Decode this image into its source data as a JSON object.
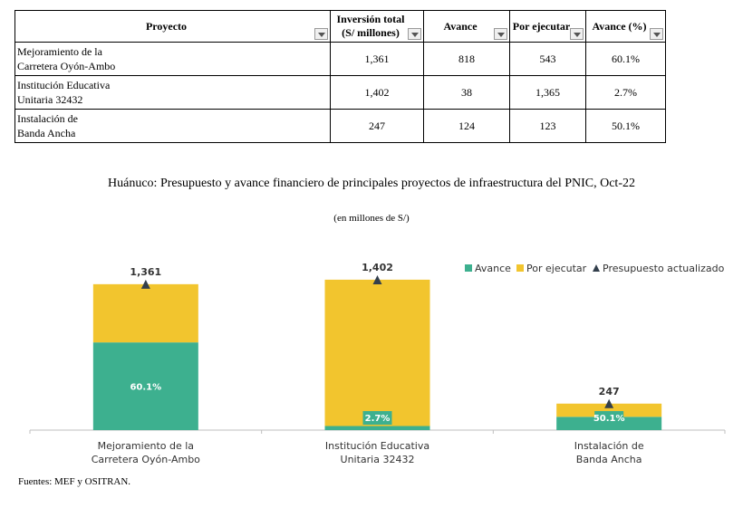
{
  "table": {
    "headers": [
      {
        "line1": "Proyecto",
        "line2": ""
      },
      {
        "line1": "Inversión total",
        "line2": "(S/ millones)"
      },
      {
        "line1": "Avance",
        "line2": ""
      },
      {
        "line1": "Por ejecutar",
        "line2": ""
      },
      {
        "line1": "Avance (%)",
        "line2": ""
      }
    ],
    "rows": [
      {
        "name1": "Mejoramiento de la",
        "name2": "Carretera Oyón-Ambo",
        "total": "1,361",
        "avance": "818",
        "por_ejecutar": "543",
        "pct": "60.1%"
      },
      {
        "name1": "Institución Educativa",
        "name2": "Unitaria 32432",
        "total": "1,402",
        "avance": "38",
        "por_ejecutar": "1,365",
        "pct": "2.7%"
      },
      {
        "name1": "Instalación de",
        "name2": "Banda Ancha",
        "total": "247",
        "avance": "124",
        "por_ejecutar": "123",
        "pct": "50.1%"
      }
    ]
  },
  "chart_data": {
    "type": "bar",
    "stacked": true,
    "title": "Huánuco: Presupuesto y avance financiero de principales proyectos de infraestructura del PNIC, Oct-22",
    "subtitle": "(en millones de S/)",
    "categories": [
      [
        "Mejoramiento de la",
        "Carretera Oyón-Ambo"
      ],
      [
        "Institución Educativa",
        "Unitaria 32432"
      ],
      [
        "Instalación de",
        "Banda Ancha"
      ]
    ],
    "series": [
      {
        "name": "Avance",
        "values": [
          818,
          38,
          124
        ],
        "color": "#3db08f"
      },
      {
        "name": "Por ejecutar",
        "values": [
          543,
          1365,
          123
        ],
        "color": "#f2c52e"
      }
    ],
    "totals": {
      "name": "Presupuesto actualizado",
      "values": [
        1361,
        1402,
        247
      ],
      "labels": [
        "1,361",
        "1,402",
        "247"
      ],
      "color": "#333f4c"
    },
    "pct_labels": [
      "60.1%",
      "2.7%",
      "50.1%"
    ],
    "legend": [
      "Avance",
      "Por ejecutar",
      "Presupuesto actualizado"
    ],
    "legend_position": "top-right",
    "ylim": [
      0,
      1402
    ],
    "xlabel": "",
    "ylabel": ""
  },
  "source": "Fuentes: MEF y OSITRAN."
}
